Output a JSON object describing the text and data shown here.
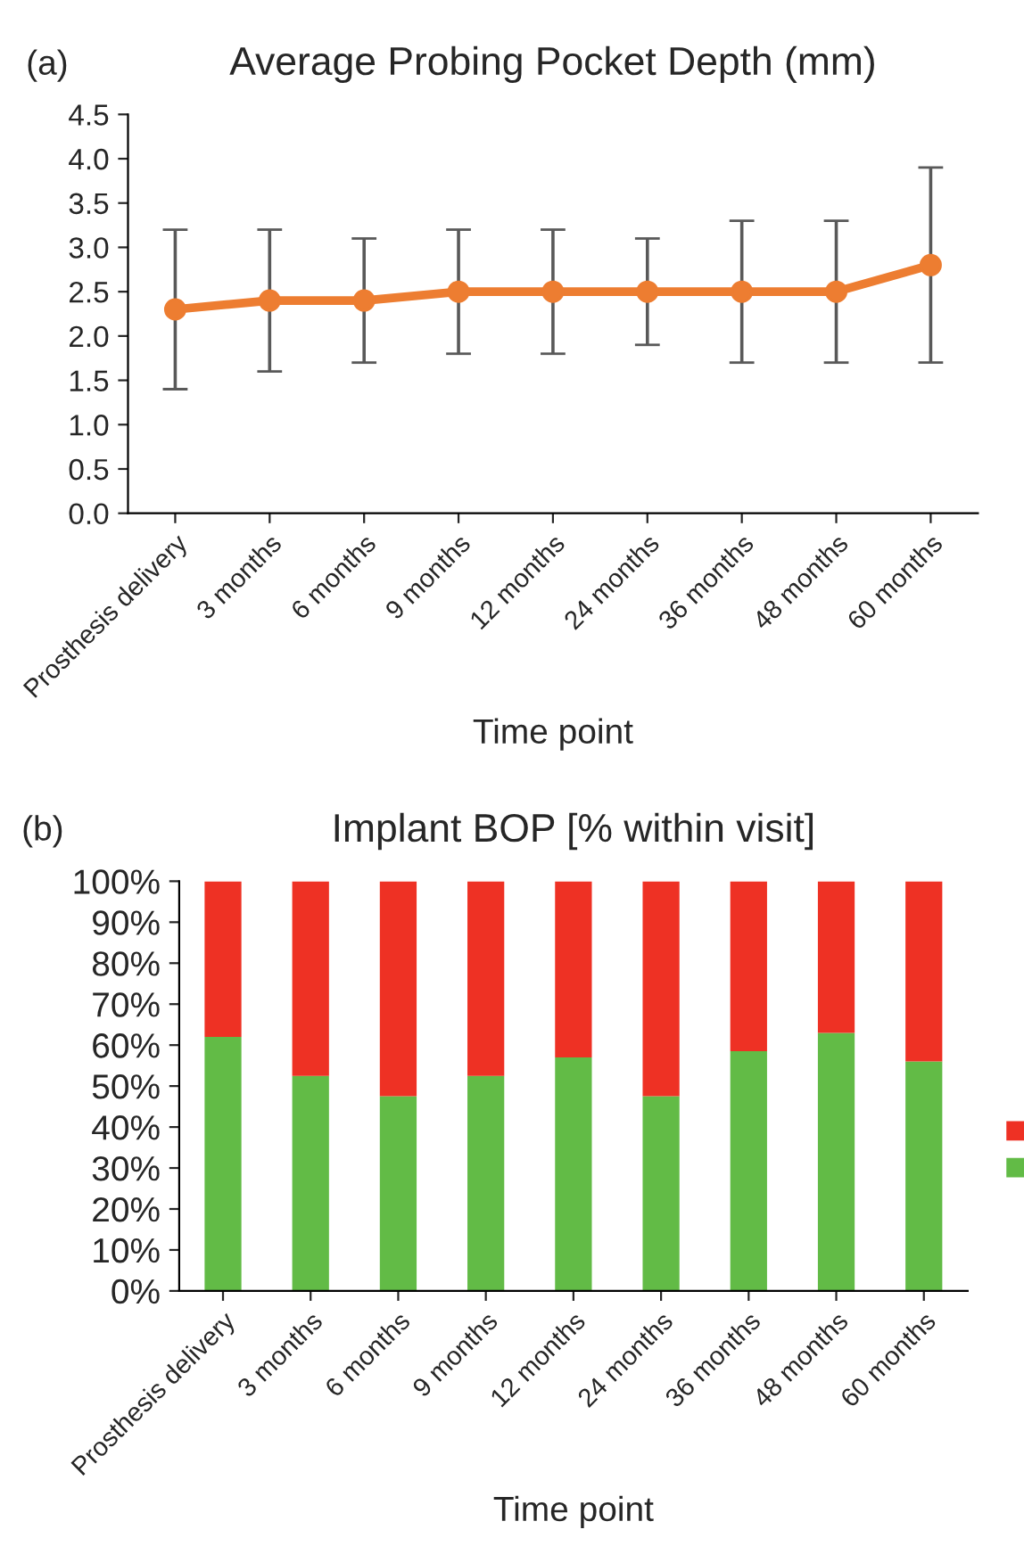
{
  "chart_data": [
    {
      "type": "line",
      "title": "Average Probing Pocket Depth (mm)",
      "xlabel": "Time point",
      "annotations": [
        "(a)"
      ],
      "categories": [
        "Prosthesis delivery",
        "3 months",
        "6 months",
        "9 months",
        "12 months",
        "24 months",
        "36 months",
        "48 months",
        "60 months"
      ],
      "series": [
        {
          "color": "#ed7d31",
          "values": [
            2.3,
            2.4,
            2.4,
            2.5,
            2.5,
            2.5,
            2.5,
            2.5,
            2.8
          ],
          "errors": [
            0.9,
            0.8,
            0.7,
            0.7,
            0.7,
            0.6,
            0.8,
            0.8,
            1.1
          ]
        }
      ],
      "ylim": [
        0,
        4.5
      ],
      "yticks": [
        {
          "value": 0,
          "label": "0.0"
        },
        {
          "value": 0.5,
          "label": "0.5"
        },
        {
          "value": 1,
          "label": "1.0"
        },
        {
          "value": 1.5,
          "label": "1.5"
        },
        {
          "value": 2,
          "label": "2.0"
        },
        {
          "value": 2.5,
          "label": "2.5"
        },
        {
          "value": 3,
          "label": "3.0"
        },
        {
          "value": 3.5,
          "label": "3.5"
        },
        {
          "value": 4,
          "label": "4.0"
        },
        {
          "value": 4.5,
          "label": "4.5"
        }
      ],
      "marker": "circle",
      "line_style": "solid",
      "grid": false,
      "legend": false
    },
    {
      "type": "bar",
      "stacked": true,
      "title": "Implant BOP [% within visit]",
      "xlabel": "Time point",
      "annotations": [
        "(b)"
      ],
      "categories": [
        "Prosthesis delivery",
        "3 months",
        "6 months",
        "9 months",
        "12 months",
        "24 months",
        "36 months",
        "48 months",
        "60 months"
      ],
      "series": [
        {
          "color": "#62bb46",
          "values": [
            62,
            52.5,
            47.5,
            52.5,
            57,
            47.5,
            58.5,
            63,
            56
          ]
        },
        {
          "color": "#ee3124",
          "values": [
            38,
            47.5,
            52.5,
            47.5,
            43,
            52.5,
            41.5,
            37,
            44
          ]
        }
      ],
      "ylim": [
        0,
        100
      ],
      "yticks": [
        {
          "value": 0,
          "label": "0%"
        },
        {
          "value": 10,
          "label": "10%"
        },
        {
          "value": 20,
          "label": "20%"
        },
        {
          "value": 30,
          "label": "30%"
        },
        {
          "value": 40,
          "label": "40%"
        },
        {
          "value": 50,
          "label": "50%"
        },
        {
          "value": 60,
          "label": "60%"
        },
        {
          "value": 70,
          "label": "70%"
        },
        {
          "value": 80,
          "label": "80%"
        },
        {
          "value": 90,
          "label": "90%"
        },
        {
          "value": 100,
          "label": "100%"
        }
      ],
      "grid": false
    }
  ]
}
